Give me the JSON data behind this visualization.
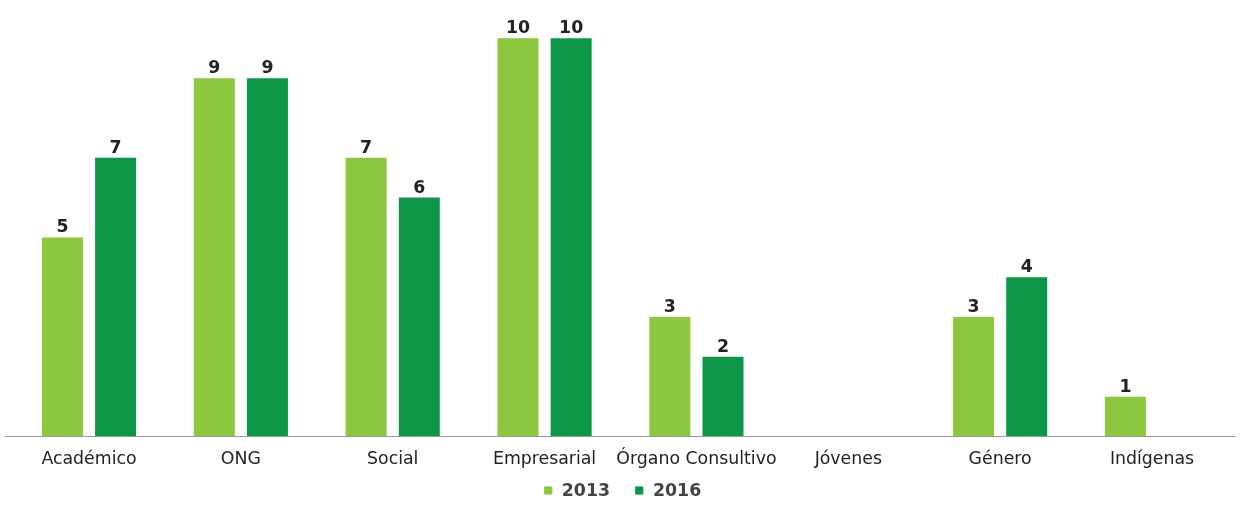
{
  "chart_data": {
    "type": "bar",
    "categories": [
      "Académico",
      "ONG",
      "Social",
      "Empresarial",
      "Órgano Consultivo",
      "Jóvenes",
      "Género",
      "Indígenas"
    ],
    "series": [
      {
        "name": "2013",
        "color": "#8dc63f",
        "values": [
          5,
          9,
          7,
          10,
          3,
          null,
          3,
          1
        ]
      },
      {
        "name": "2016",
        "color": "#0d9648",
        "values": [
          7,
          9,
          6,
          10,
          2,
          null,
          4,
          null
        ]
      }
    ],
    "data_labels": true,
    "legend": "bottom",
    "grid": false,
    "tick_labels": "x"
  }
}
